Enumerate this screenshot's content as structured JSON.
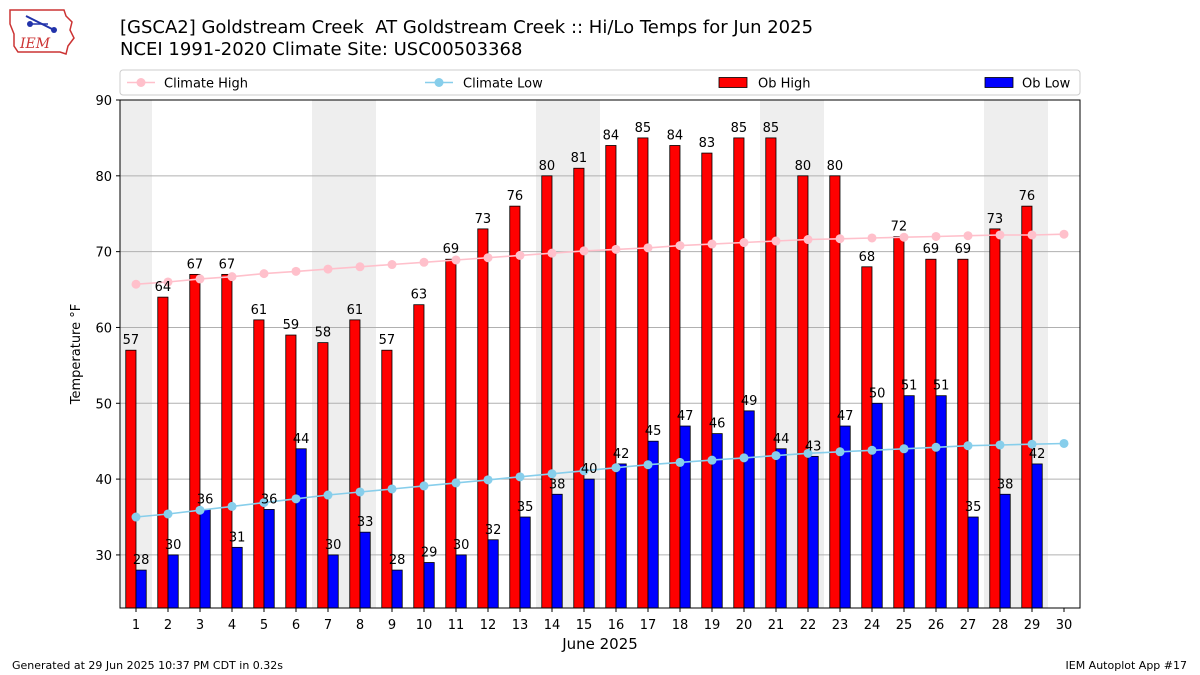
{
  "header": {
    "title_line1": "[GSCA2] Goldstream Creek  AT Goldstream Creek :: Hi/Lo Temps for Jun 2025",
    "title_line2": "NCEI 1991-2020 Climate Site: USC00503368",
    "logo_text": "IEM"
  },
  "footer": {
    "left": "Generated at 29 Jun 2025 10:37 PM CDT in 0.32s",
    "right": "IEM Autoplot App #17"
  },
  "colors": {
    "ob_high": "#ff0000",
    "ob_low": "#0000ff",
    "climate_high": "#ffc0cb",
    "climate_low": "#87ceeb",
    "weekend_shade": "#eeeeee",
    "grid": "#b0b0b0"
  },
  "chart_data": {
    "type": "bar",
    "xlabel": "June 2025",
    "ylabel": "Temperature °F",
    "ylim": [
      23,
      90
    ],
    "yticks": [
      30,
      40,
      50,
      60,
      70,
      80,
      90
    ],
    "grid": "horizontal",
    "legend_placement": "top",
    "categories": [
      "1",
      "2",
      "3",
      "4",
      "5",
      "6",
      "7",
      "8",
      "9",
      "10",
      "11",
      "12",
      "13",
      "14",
      "15",
      "16",
      "17",
      "18",
      "19",
      "20",
      "21",
      "22",
      "23",
      "24",
      "25",
      "26",
      "27",
      "28",
      "29",
      "30"
    ],
    "shaded_days": [
      1,
      7,
      8,
      14,
      15,
      21,
      22,
      28,
      29
    ],
    "series": [
      {
        "name": "Climate High",
        "kind": "line",
        "values": [
          65.7,
          66.0,
          66.4,
          66.7,
          67.1,
          67.4,
          67.7,
          68.0,
          68.3,
          68.6,
          68.9,
          69.2,
          69.5,
          69.8,
          70.1,
          70.3,
          70.5,
          70.8,
          71.0,
          71.2,
          71.4,
          71.6,
          71.7,
          71.8,
          71.9,
          72.0,
          72.1,
          72.2,
          72.2,
          72.3
        ]
      },
      {
        "name": "Climate Low",
        "kind": "line",
        "values": [
          35.0,
          35.4,
          35.9,
          36.4,
          36.9,
          37.4,
          37.9,
          38.3,
          38.7,
          39.1,
          39.5,
          39.9,
          40.3,
          40.7,
          41.1,
          41.5,
          41.9,
          42.2,
          42.5,
          42.8,
          43.1,
          43.4,
          43.6,
          43.8,
          44.0,
          44.2,
          44.4,
          44.5,
          44.6,
          44.7
        ]
      },
      {
        "name": "Ob High",
        "kind": "bar",
        "values": [
          57,
          64,
          67,
          67,
          61,
          59,
          58,
          61,
          57,
          63,
          69,
          73,
          76,
          80,
          81,
          84,
          85,
          84,
          83,
          85,
          85,
          80,
          80,
          68,
          72,
          69,
          69,
          73,
          76,
          null
        ]
      },
      {
        "name": "Ob Low",
        "kind": "bar",
        "values": [
          28,
          30,
          36,
          31,
          36,
          44,
          30,
          33,
          28,
          29,
          30,
          32,
          35,
          38,
          40,
          42,
          45,
          47,
          46,
          49,
          44,
          43,
          47,
          50,
          51,
          51,
          35,
          38,
          42,
          null
        ]
      }
    ]
  }
}
